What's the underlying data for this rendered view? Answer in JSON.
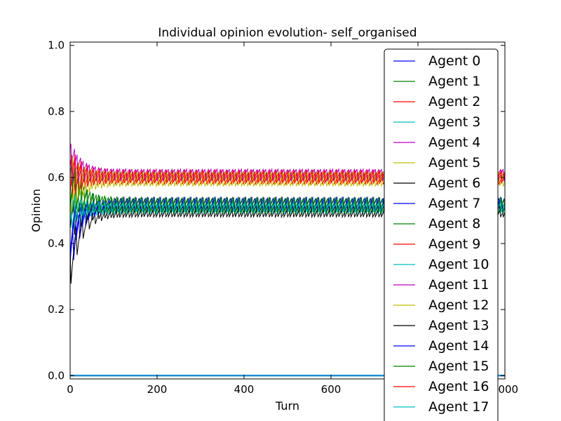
{
  "chart_data": {
    "type": "line",
    "title": "Individual opinion evolution- self_organised",
    "xlabel": "Turn",
    "ylabel": "Opinion",
    "xlim": [
      0,
      1000
    ],
    "ylim": [
      -0.01,
      1.01
    ],
    "xticks": [
      0,
      200,
      400,
      600,
      800,
      1000
    ],
    "xtick_labels": [
      "0",
      "200",
      "400",
      "600",
      "800",
      "1000"
    ],
    "yticks": [
      0.0,
      0.2,
      0.4,
      0.6,
      0.8,
      1.0
    ],
    "ytick_labels": [
      "0.0",
      "0.2",
      "0.4",
      "0.6",
      "0.8",
      "1.0"
    ],
    "grid": false,
    "legend_position": "right",
    "series_colors": [
      "#0000ff",
      "#008000",
      "#ff0000",
      "#00bfbf",
      "#bf00bf",
      "#bfbf00",
      "#000000"
    ],
    "series": [
      {
        "name": "Agent 0",
        "color": "#0000ff",
        "start": 0.42,
        "level": 0.525,
        "amp": 0.02,
        "phase": 0
      },
      {
        "name": "Agent 1",
        "color": "#008000",
        "start": 0.55,
        "level": 0.52,
        "amp": 0.025,
        "phase": 3
      },
      {
        "name": "Agent 2",
        "color": "#ff0000",
        "start": 0.63,
        "level": 0.605,
        "amp": 0.02,
        "phase": 1
      },
      {
        "name": "Agent 3",
        "color": "#00bfbf",
        "start": 0.46,
        "level": 0.51,
        "amp": 0.015,
        "phase": 5
      },
      {
        "name": "Agent 4",
        "color": "#bf00bf",
        "start": 0.66,
        "level": 0.61,
        "amp": 0.02,
        "phase": 2
      },
      {
        "name": "Agent 5",
        "color": "#bfbf00",
        "start": 0.6,
        "level": 0.6,
        "amp": 0.025,
        "phase": 6
      },
      {
        "name": "Agent 6",
        "color": "#000000",
        "start": 0.48,
        "level": 0.5,
        "amp": 0.02,
        "phase": 4
      },
      {
        "name": "Agent 7",
        "color": "#0000ff",
        "start": 0.36,
        "level": 0.52,
        "amp": 0.02,
        "phase": 7
      },
      {
        "name": "Agent 8",
        "color": "#008000",
        "start": 0.58,
        "level": 0.515,
        "amp": 0.025,
        "phase": 9
      },
      {
        "name": "Agent 9",
        "color": "#ff0000",
        "start": 0.62,
        "level": 0.6,
        "amp": 0.02,
        "phase": 8
      },
      {
        "name": "Agent 10",
        "color": "#00bfbf",
        "start": 0.5,
        "level": 0.505,
        "amp": 0.015,
        "phase": 10
      },
      {
        "name": "Agent 11",
        "color": "#bf00bf",
        "start": 0.64,
        "level": 0.608,
        "amp": 0.02,
        "phase": 11
      },
      {
        "name": "Agent 12",
        "color": "#bfbf00",
        "start": 0.57,
        "level": 0.598,
        "amp": 0.025,
        "phase": 12
      },
      {
        "name": "Agent 13",
        "color": "#000000",
        "start": 0.33,
        "level": 0.498,
        "amp": 0.02,
        "phase": 13
      },
      {
        "name": "Agent 14",
        "color": "#0000ff",
        "start": 0.44,
        "level": 0.518,
        "amp": 0.02,
        "phase": 14
      },
      {
        "name": "Agent 15",
        "color": "#008000",
        "start": 0.6,
        "level": 0.512,
        "amp": 0.025,
        "phase": 15
      },
      {
        "name": "Agent 16",
        "color": "#ff0000",
        "start": 0.61,
        "level": 0.603,
        "amp": 0.02,
        "phase": 16
      },
      {
        "name": "Agent 17",
        "color": "#00bfbf",
        "start": 0.5,
        "level": 0.51,
        "amp": 0.015,
        "phase": 17
      }
    ],
    "baseline_series": {
      "color": "#1f8fd0",
      "value": 0.0
    }
  }
}
